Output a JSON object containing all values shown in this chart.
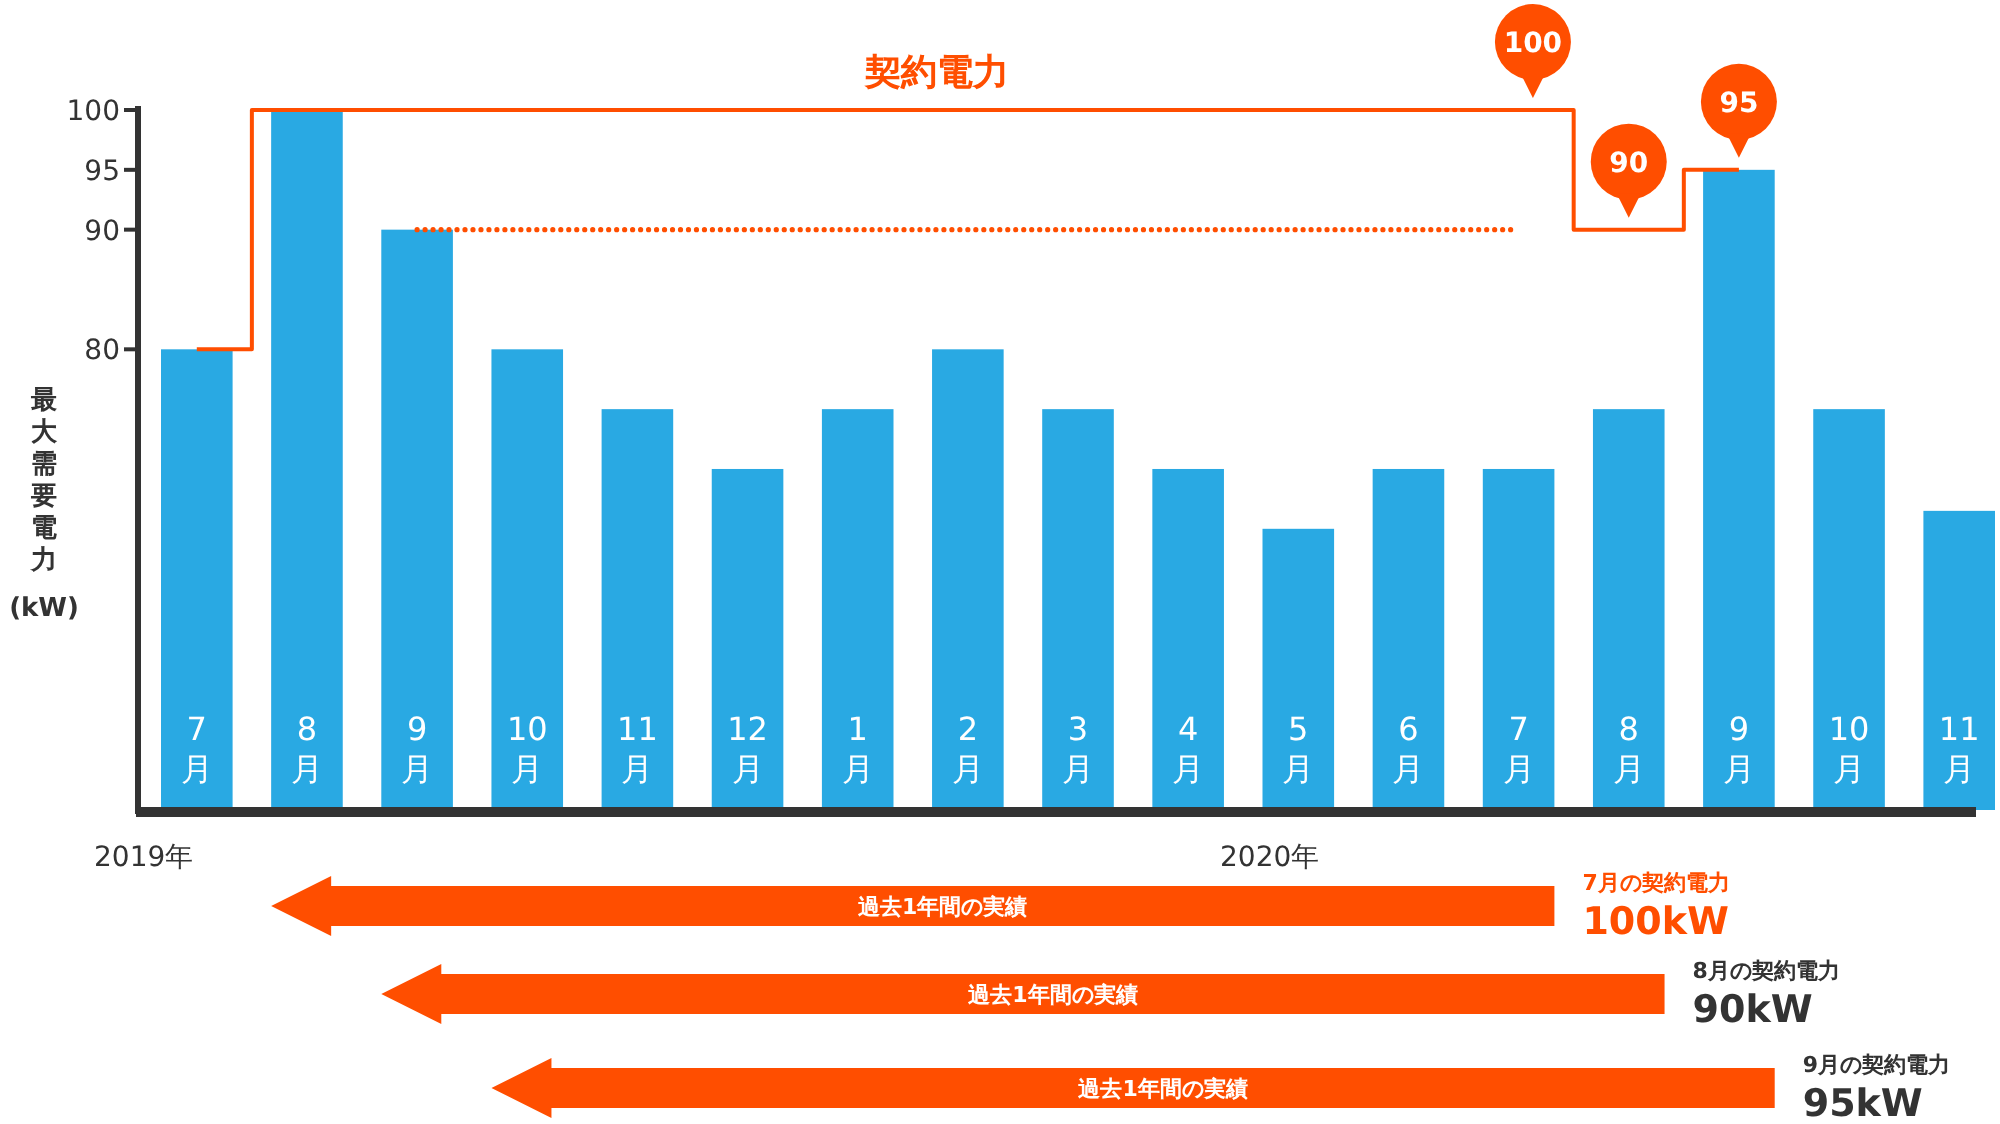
{
  "chart_data": {
    "type": "bar",
    "ylabel": "最大需要電力 (kW)",
    "categories": [
      "7月",
      "8月",
      "9月",
      "10月",
      "11月",
      "12月",
      "1月",
      "2月",
      "3月",
      "4月",
      "5月",
      "6月",
      "7月",
      "8月",
      "9月",
      "10月",
      "11月"
    ],
    "series": [
      {
        "color": "#29a9e3",
        "values": [
          80,
          100,
          90,
          80,
          75,
          70,
          75,
          80,
          75,
          70,
          65,
          70,
          70,
          75,
          95,
          75,
          66.5
        ]
      },
      {
        "type": "step",
        "name": "契約電力",
        "color": "#ff4e00",
        "line_style": "solid",
        "values": [
          80,
          100,
          100,
          100,
          100,
          100,
          100,
          100,
          100,
          100,
          100,
          100,
          100,
          90,
          95,
          null,
          null
        ],
        "value_labels": [
          null,
          null,
          null,
          null,
          null,
          null,
          null,
          null,
          null,
          null,
          null,
          null,
          "100",
          "90",
          "95",
          null,
          null
        ]
      },
      {
        "type": "line",
        "color": "#ff4e00",
        "line_style": "dotted",
        "values": [
          null,
          null,
          90,
          90,
          90,
          90,
          90,
          90,
          90,
          90,
          90,
          90,
          90,
          null,
          null,
          null,
          null
        ]
      }
    ],
    "ylim": [
      41.5,
      100
    ],
    "yticks": [
      80,
      90,
      95,
      100
    ],
    "annotations": [
      "2019年",
      "2020年",
      "過去1年間の実績",
      "過去1年間の実績",
      "過去1年間の実績",
      "7月の契約電力",
      "100kW",
      "8月の契約電力",
      "90kW",
      "9月の契約電力",
      "95kW"
    ]
  }
}
